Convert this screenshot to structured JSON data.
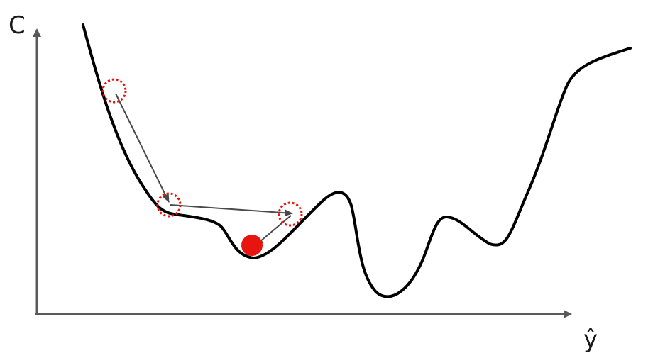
{
  "axes": {
    "y_label": "C",
    "x_label": "ŷ"
  },
  "colors": {
    "axis": "#595959",
    "curve": "#000000",
    "arrow": "#4a4a4a",
    "marker": "#e8140f",
    "step_circle": "#e8140f"
  }
}
